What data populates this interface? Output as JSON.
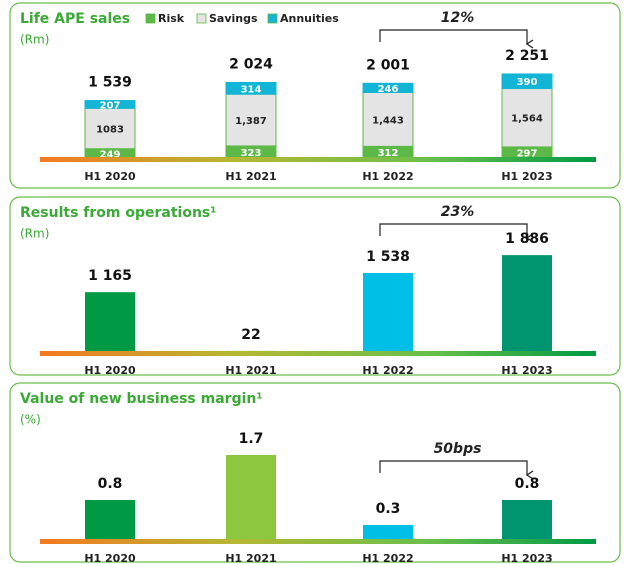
{
  "chart_data": [
    {
      "type": "stacked_bar",
      "title": "Life APE sales",
      "subtitle": "(Rm)",
      "categories": [
        "H1 2020",
        "H1 2021",
        "H1 2022",
        "H1 2023"
      ],
      "series": [
        {
          "name": "Risk",
          "color": "#5cb947",
          "values": [
            249,
            323,
            312,
            297
          ]
        },
        {
          "name": "Savings",
          "color": "#e4e4e4",
          "values": [
            1083,
            1387,
            1443,
            1564
          ],
          "value_labels": [
            "1083",
            "1,387",
            "1,443",
            "1,564"
          ]
        },
        {
          "name": "Annuities",
          "color": "#12b5d6",
          "values": [
            207,
            314,
            246,
            390
          ]
        }
      ],
      "totals": [
        1539,
        2024,
        2001,
        2251
      ],
      "total_labels": [
        "1 539",
        "2 024",
        "2 001",
        "2 251"
      ],
      "annotation": "12%",
      "ylim": [
        0,
        3000
      ]
    },
    {
      "type": "bar",
      "title": "Results from operations¹",
      "subtitle": "(Rm)",
      "categories": [
        "H1 2020",
        "H1 2021",
        "H1 2022",
        "H1 2023"
      ],
      "values": [
        1165,
        22,
        1538,
        1886
      ],
      "value_labels": [
        "1 165",
        "22",
        "1 538",
        "1 886"
      ],
      "colors": [
        "#009a44",
        "#8dc63f",
        "#00bfe6",
        "#00956e"
      ],
      "annotation": "23%",
      "ylim": [
        0,
        2200
      ]
    },
    {
      "type": "bar",
      "title": "Value of new business margin¹",
      "subtitle": "(%)",
      "categories": [
        "H1 2020",
        "H1 2021",
        "H1 2022",
        "H1 2023"
      ],
      "values": [
        0.8,
        1.7,
        0.3,
        0.8
      ],
      "colors": [
        "#009a44",
        "#8dc63f",
        "#00bfe6",
        "#00956e"
      ],
      "annotation": "50bps",
      "ylim": [
        0,
        2.2
      ]
    }
  ]
}
